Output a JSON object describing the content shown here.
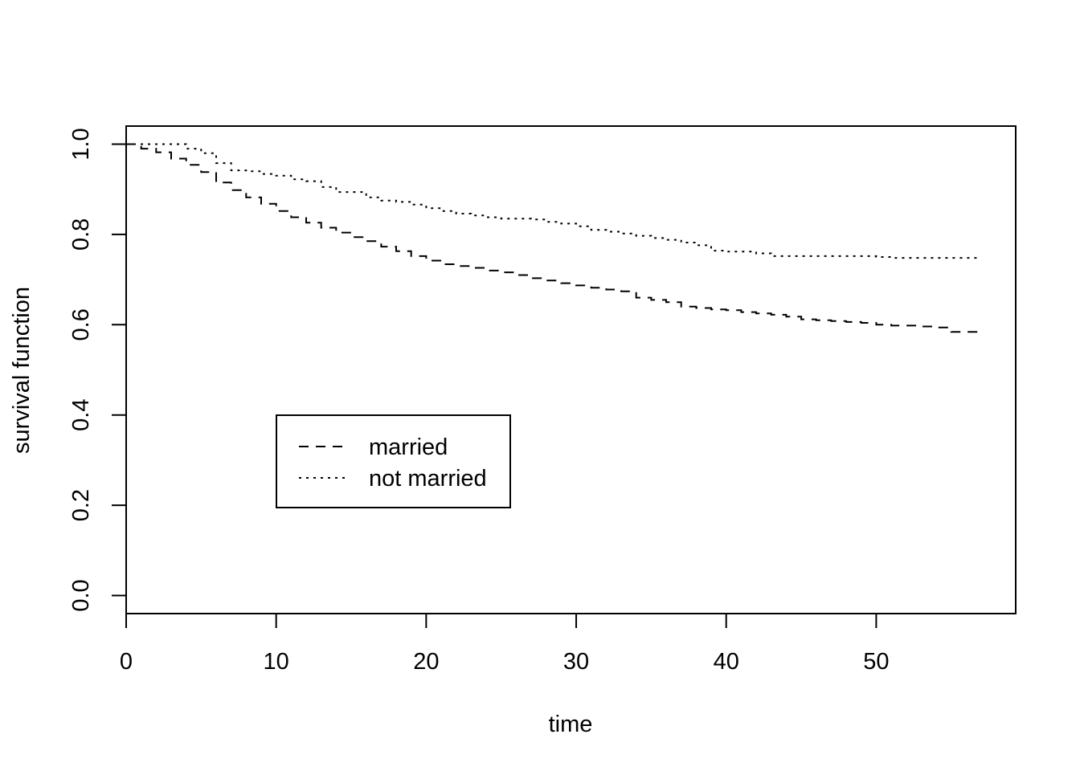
{
  "chart_data": {
    "type": "line",
    "step": true,
    "title": "",
    "xlabel": "time",
    "ylabel": "survival function",
    "xlim": [
      0,
      59.3
    ],
    "ylim": [
      -0.04,
      1.04
    ],
    "xticks": [
      0,
      10,
      20,
      30,
      40,
      50
    ],
    "yticks": [
      0.0,
      0.2,
      0.4,
      0.6,
      0.8,
      1.0
    ],
    "xtick_labels": [
      "0",
      "10",
      "20",
      "30",
      "40",
      "50"
    ],
    "ytick_labels": [
      "0.0",
      "0.2",
      "0.4",
      "0.6",
      "0.8",
      "1.0"
    ],
    "grid": false,
    "legend_position": "middle-left",
    "series": [
      {
        "name": "married",
        "line_style": "dashed",
        "color": "#000000",
        "x": [
          0,
          1,
          2,
          3,
          4,
          5,
          6,
          7,
          8,
          9,
          10,
          11,
          12,
          13,
          14,
          15,
          16,
          17,
          18,
          19,
          20,
          21,
          22,
          23,
          24,
          25,
          26,
          27,
          28,
          29,
          30,
          31,
          32,
          33,
          34,
          35,
          36,
          37,
          38,
          39,
          40,
          41,
          42,
          43,
          44,
          45,
          46,
          47,
          48,
          49,
          50,
          51,
          52,
          53,
          54,
          55,
          56,
          57
        ],
        "y": [
          1.0,
          0.99,
          0.982,
          0.968,
          0.954,
          0.938,
          0.915,
          0.898,
          0.882,
          0.868,
          0.852,
          0.838,
          0.826,
          0.815,
          0.804,
          0.794,
          0.785,
          0.773,
          0.763,
          0.752,
          0.742,
          0.734,
          0.73,
          0.726,
          0.72,
          0.716,
          0.71,
          0.703,
          0.698,
          0.692,
          0.687,
          0.682,
          0.678,
          0.674,
          0.66,
          0.655,
          0.65,
          0.64,
          0.637,
          0.634,
          0.632,
          0.628,
          0.625,
          0.622,
          0.618,
          0.612,
          0.61,
          0.608,
          0.606,
          0.604,
          0.6,
          0.598,
          0.598,
          0.596,
          0.594,
          0.584,
          0.584,
          0.584
        ]
      },
      {
        "name": "not married",
        "line_style": "dotted",
        "color": "#000000",
        "x": [
          0,
          1,
          2,
          3,
          4,
          5,
          6,
          7,
          8,
          9,
          10,
          11,
          12,
          13,
          14,
          15,
          16,
          17,
          18,
          19,
          20,
          21,
          22,
          23,
          24,
          25,
          26,
          27,
          28,
          29,
          30,
          31,
          32,
          33,
          34,
          35,
          36,
          37,
          38,
          39,
          40,
          41,
          42,
          43,
          44,
          45,
          46,
          47,
          48,
          49,
          50,
          51,
          52,
          53,
          54,
          55,
          56,
          57
        ],
        "y": [
          1.0,
          1.0,
          1.0,
          1.0,
          0.99,
          0.98,
          0.958,
          0.942,
          0.94,
          0.934,
          0.93,
          0.922,
          0.918,
          0.905,
          0.894,
          0.894,
          0.882,
          0.875,
          0.872,
          0.866,
          0.858,
          0.852,
          0.846,
          0.842,
          0.838,
          0.835,
          0.835,
          0.833,
          0.828,
          0.824,
          0.818,
          0.81,
          0.806,
          0.802,
          0.797,
          0.792,
          0.788,
          0.782,
          0.776,
          0.764,
          0.762,
          0.762,
          0.758,
          0.752,
          0.752,
          0.752,
          0.752,
          0.752,
          0.752,
          0.752,
          0.75,
          0.748,
          0.748,
          0.748,
          0.748,
          0.748,
          0.748,
          0.748
        ]
      }
    ]
  }
}
